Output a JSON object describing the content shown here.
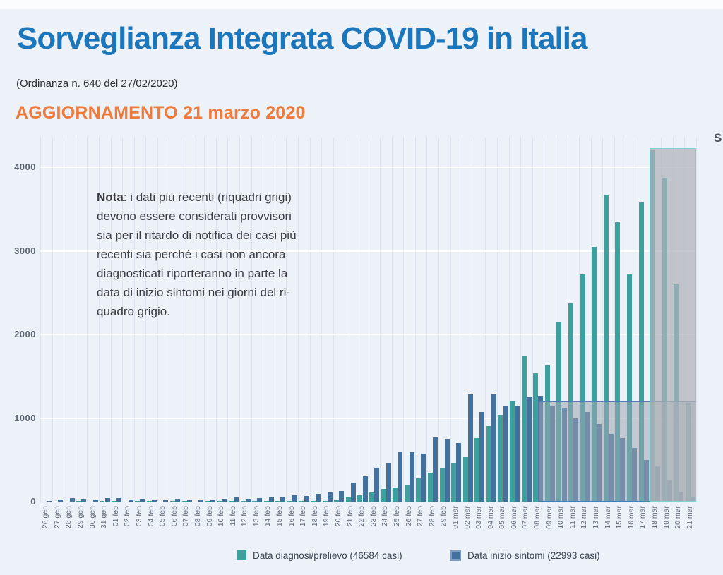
{
  "header": {
    "title": "Sorveglianza Integrata COVID-19 in Italia",
    "ordinance": "(Ordinanza n. 640 del 27/02/2020)",
    "update": "AGGIORNAMENTO 21 marzo 2020",
    "title_color": "#1b76bb",
    "update_color": "#ee7a3c",
    "edge_fragment": "S"
  },
  "note": {
    "lead": "Nota",
    "line1": ": i dati più recenti (riquadri grigi)",
    "line2": "devono essere considerati provvisori",
    "line3": "sia per il ritardo di notifica dei casi più",
    "line4": "recenti sia perché i casi non ancora",
    "line5": "diagnosticati riporteranno in parte la",
    "line6": "data di inizio sintomi nei giorni del ri-",
    "line7": "quadro grigio."
  },
  "chart_data": {
    "type": "bar",
    "categories": [
      "26 gen",
      "27 gen",
      "28 gen",
      "29 gen",
      "30 gen",
      "31 gen",
      "01 feb",
      "02 feb",
      "03 feb",
      "04 feb",
      "05 feb",
      "06 feb",
      "07 feb",
      "08 feb",
      "09 feb",
      "10 feb",
      "11 feb",
      "12 feb",
      "13 feb",
      "14 feb",
      "15 feb",
      "16 feb",
      "17 feb",
      "18 feb",
      "19 feb",
      "20 feb",
      "21 feb",
      "22 feb",
      "23 feb",
      "24 feb",
      "25 feb",
      "26 feb",
      "27 feb",
      "28 feb",
      "29 feb",
      "01 mar",
      "02 mar",
      "03 mar",
      "04 mar",
      "05 mar",
      "06 mar",
      "07 mar",
      "08 mar",
      "09 mar",
      "10 mar",
      "11 mar",
      "12 mar",
      "13 mar",
      "14 mar",
      "15 mar",
      "16 mar",
      "17 mar",
      "18 mar",
      "19 mar",
      "20 mar",
      "21 mar"
    ],
    "series": [
      {
        "name": "Data diagnosi/prelievo (46584 casi)",
        "color": "#3f9f9c",
        "values": [
          0,
          0,
          0,
          1,
          0,
          2,
          1,
          0,
          1,
          1,
          0,
          3,
          1,
          0,
          1,
          1,
          2,
          1,
          2,
          2,
          2,
          2,
          3,
          4,
          5,
          25,
          50,
          80,
          110,
          150,
          165,
          190,
          275,
          345,
          400,
          466,
          530,
          760,
          900,
          1040,
          1210,
          1745,
          1535,
          1630,
          2150,
          2370,
          2715,
          3050,
          3670,
          3340,
          2720,
          3580,
          4210,
          3870,
          2600,
          1185
        ]
      },
      {
        "name": "Data inizio sintomi (22993 casi)",
        "color": "#44709d",
        "values": [
          2,
          25,
          40,
          30,
          25,
          45,
          40,
          25,
          30,
          25,
          20,
          30,
          25,
          20,
          25,
          35,
          55,
          30,
          45,
          50,
          60,
          75,
          70,
          90,
          110,
          130,
          230,
          300,
          405,
          460,
          600,
          590,
          575,
          770,
          755,
          700,
          1280,
          1070,
          1285,
          1140,
          1150,
          1255,
          1265,
          1150,
          1120,
          1000,
          1070,
          930,
          810,
          760,
          640,
          500,
          420,
          250,
          120,
          60
        ]
      }
    ],
    "ylim": [
      0,
      4350
    ],
    "yticks": [
      0,
      1000,
      2000,
      3000,
      4000
    ],
    "grid": true,
    "legend_position": "bottom",
    "provisional_boxes": [
      {
        "name": "riquadro-grigio-sintomi",
        "from": "08 mar",
        "to": "21 mar",
        "top_value": 1200,
        "from_mid_slot": true,
        "fill": "rgba(158,166,178,0.55)",
        "border": "#4d7dac"
      },
      {
        "name": "riquadro-grigio-diagnosi",
        "from": "18 mar",
        "to": "21 mar",
        "top_value": 4230,
        "from_mid_slot": false,
        "fill": "rgba(176,180,186,0.72)",
        "border": "#85ccd3"
      }
    ]
  }
}
